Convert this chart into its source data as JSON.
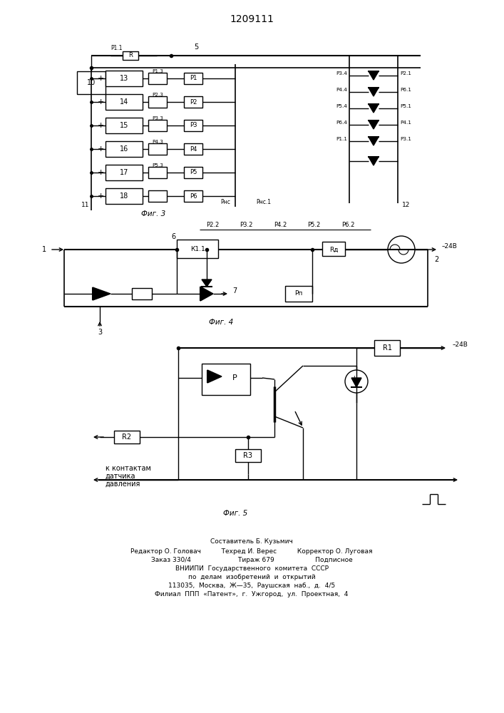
{
  "patent_number": "1209111",
  "background_color": "#ffffff",
  "footer_lines": [
    "Составитель Б. Кузьмич",
    "Редактор О. Головач          Техред И. Верес          Корректор О. Луговая",
    "Заказ 330/4                       Тираж 679                    Подписное",
    "ВНИИПИ  Государственного  комитета  СССР",
    "по  делам  изобретений  и  открытий",
    "113035,  Москва,  Ж—35,  Раушская  наб.,  д.  4/5",
    "Филиал  ППП  «Патент»,  г.  Ужгород,  ул.  Проектная,  4"
  ],
  "block_labels": [
    "13",
    "14",
    "15",
    "16",
    "17",
    "18"
  ],
  "relay_labels_left": [
    "Р1.3",
    "Р2.3",
    "Р3.3",
    "Р4.3",
    "Р5.3",
    ""
  ],
  "relay_labels_right": [
    "Р1",
    "Р2",
    "Р3",
    "Р4",
    "Р5",
    "Р6"
  ],
  "right_labels_left": [
    "Р3.4",
    "Р4.4",
    "Р5.4",
    "Р6.4",
    "Р1.1",
    ""
  ],
  "right_labels_right": [
    "Р2.1",
    "Р6.1",
    "Р5.1",
    "Р4.1",
    "Р3.1",
    ""
  ],
  "connector_labels": [
    "Р2.2",
    "Р3.2",
    "Р4.2",
    "Р5.2",
    "Р6.2"
  ]
}
